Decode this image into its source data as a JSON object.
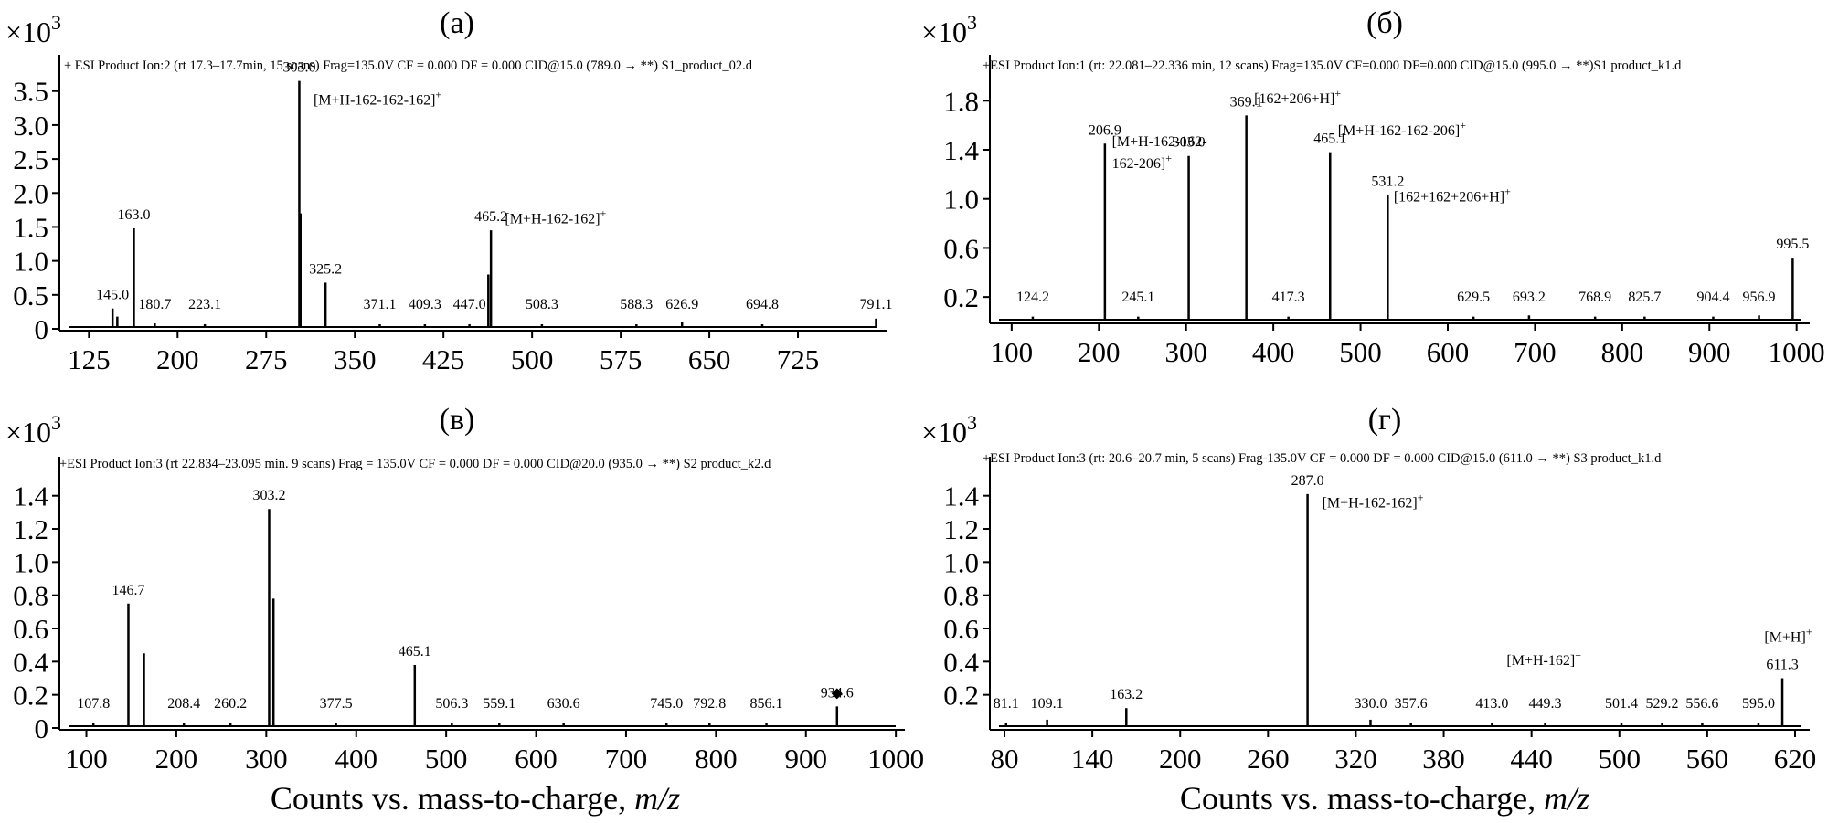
{
  "chart_data": [
    {
      "type": "bar",
      "panel_label": "(а)",
      "multiplier": "×10",
      "multiplier_exp": "3",
      "header": "+ ESI Product Ion:2 (rt 17.3–17.7min, 15 scans) Frag=135.0V CF = 0.000 DF = 0.000 CID@15.0 (789.0 → **) S1_product_02.d",
      "xlim": [
        100,
        800
      ],
      "ylim": [
        0,
        3.9
      ],
      "xticks": [
        125,
        200,
        275,
        350,
        425,
        500,
        575,
        650,
        725
      ],
      "yticks": [
        0,
        0.5,
        1.0,
        1.5,
        2.0,
        2.5,
        3.0,
        3.5
      ],
      "ytick_labels": [
        "0",
        "0.5",
        "1.0",
        "1.5",
        "2.0",
        "2.5",
        "3.0",
        "3.5"
      ],
      "peaks": [
        {
          "x": 145.0,
          "y": 0.3,
          "label": "145.0"
        },
        {
          "x": 149.0,
          "y": 0.18
        },
        {
          "x": 163.0,
          "y": 1.48,
          "label": "163.0"
        },
        {
          "x": 180.7,
          "y": 0.08,
          "label": "180.7"
        },
        {
          "x": 223.1,
          "y": 0.05,
          "label": "223.1"
        },
        {
          "x": 303.0,
          "y": 3.65,
          "label": "303.0"
        },
        {
          "x": 304.0,
          "y": 1.7
        },
        {
          "x": 325.2,
          "y": 0.68,
          "label": "325.2"
        },
        {
          "x": 371.1,
          "y": 0.05,
          "label": "371.1"
        },
        {
          "x": 409.3,
          "y": 0.05,
          "label": "409.3"
        },
        {
          "x": 447.0,
          "y": 0.05,
          "label": "447.0"
        },
        {
          "x": 465.2,
          "y": 1.45,
          "label": "465.2"
        },
        {
          "x": 463.0,
          "y": 0.8
        },
        {
          "x": 508.3,
          "y": 0.05,
          "label": "508.3"
        },
        {
          "x": 588.3,
          "y": 0.05,
          "label": "588.3"
        },
        {
          "x": 626.9,
          "y": 0.1,
          "label": "626.9"
        },
        {
          "x": 694.8,
          "y": 0.05,
          "label": "694.8"
        },
        {
          "x": 791.1,
          "y": 0.15,
          "label": "791.1"
        }
      ],
      "annotations": [
        {
          "text": "[M+H-162-162-162]",
          "sup": "+",
          "x": 315,
          "y": 3.3
        },
        {
          "text": "[M+H-162-162]",
          "sup": "+",
          "x": 477,
          "y": 1.55
        }
      ]
    },
    {
      "type": "bar",
      "panel_label": "(б)",
      "multiplier": "×10",
      "multiplier_exp": "3",
      "header": "+ESI Product Ion:1 (rt: 22.081–22.336 min, 12 scans) Frag=135.0V CF=0.000 DF=0.000 CID@15.0 (995.0 → **)S1 product_k1.d",
      "xlim": [
        75,
        1015
      ],
      "ylim": [
        0,
        2.1
      ],
      "xticks": [
        100,
        200,
        300,
        400,
        500,
        600,
        700,
        800,
        900,
        1000
      ],
      "yticks": [
        0.2,
        0.6,
        1.0,
        1.4,
        1.8
      ],
      "ytick_labels": [
        "0.2",
        "0.6",
        "1.0",
        "1.4",
        "1.8"
      ],
      "peaks": [
        {
          "x": 124.2,
          "y": 0.04,
          "label": "124.2"
        },
        {
          "x": 206.9,
          "y": 1.45,
          "label": "206.9"
        },
        {
          "x": 245.1,
          "y": 0.04,
          "label": "245.1"
        },
        {
          "x": 303.0,
          "y": 1.35,
          "label": "303.0"
        },
        {
          "x": 369.1,
          "y": 1.68,
          "label": "369.1"
        },
        {
          "x": 417.3,
          "y": 0.04,
          "label": "417.3"
        },
        {
          "x": 465.1,
          "y": 1.38,
          "label": "465.1"
        },
        {
          "x": 531.2,
          "y": 1.03,
          "label": "531.2"
        },
        {
          "x": 629.5,
          "y": 0.04,
          "label": "629.5"
        },
        {
          "x": 693.2,
          "y": 0.05,
          "label": "693.2"
        },
        {
          "x": 768.9,
          "y": 0.04,
          "label": "768.9"
        },
        {
          "x": 825.7,
          "y": 0.04,
          "label": "825.7"
        },
        {
          "x": 904.4,
          "y": 0.04,
          "label": "904.4"
        },
        {
          "x": 956.9,
          "y": 0.05,
          "label": "956.9"
        },
        {
          "x": 995.5,
          "y": 0.52,
          "label": "995.5"
        }
      ],
      "annotations": [
        {
          "text": "[M+H-162-162-",
          "x": 215,
          "y": 1.43
        },
        {
          "text": "162-206]",
          "sup": "+",
          "x": 215,
          "y": 1.25
        },
        {
          "text": "[162+206+H]",
          "sup": "+",
          "x": 378,
          "y": 1.78
        },
        {
          "text": "[M+H-162-162-206]",
          "sup": "+",
          "x": 474,
          "y": 1.52
        },
        {
          "text": "[162+162+206+H]",
          "sup": "+",
          "x": 538,
          "y": 0.98
        }
      ]
    },
    {
      "type": "bar",
      "panel_label": "(в)",
      "multiplier": "×10",
      "multiplier_exp": "3",
      "header": "+ESI Product Ion:3 (rt 22.834–23.095 min. 9 scans) Frag = 135.0V CF = 0.000 DF = 0.000 CID@20.0 (935.0 → **) S2 product_k2.d",
      "xlim": [
        70,
        1010
      ],
      "ylim": [
        0,
        1.58
      ],
      "xticks": [
        100,
        200,
        300,
        400,
        500,
        600,
        700,
        800,
        900,
        1000
      ],
      "yticks": [
        0,
        0.2,
        0.4,
        0.6,
        0.8,
        1.0,
        1.2,
        1.4
      ],
      "ytick_labels": [
        "0",
        "0.2",
        "0.4",
        "0.6",
        "0.8",
        "1.0",
        "1.2",
        "1.4"
      ],
      "peaks": [
        {
          "x": 107.8,
          "y": 0.02,
          "label": "107.8"
        },
        {
          "x": 146.7,
          "y": 0.75,
          "label": "146.7"
        },
        {
          "x": 164.0,
          "y": 0.45
        },
        {
          "x": 208.4,
          "y": 0.02,
          "label": "208.4"
        },
        {
          "x": 260.2,
          "y": 0.02,
          "label": "260.2"
        },
        {
          "x": 303.2,
          "y": 1.32,
          "label": "303.2"
        },
        {
          "x": 308.0,
          "y": 0.78
        },
        {
          "x": 377.5,
          "y": 0.02,
          "label": "377.5"
        },
        {
          "x": 465.1,
          "y": 0.38,
          "label": "465.1"
        },
        {
          "x": 506.3,
          "y": 0.02,
          "label": "506.3"
        },
        {
          "x": 559.1,
          "y": 0.02,
          "label": "559.1"
        },
        {
          "x": 630.6,
          "y": 0.02,
          "label": "630.6"
        },
        {
          "x": 745.0,
          "y": 0.02,
          "label": "745.0"
        },
        {
          "x": 792.8,
          "y": 0.02,
          "label": "792.8"
        },
        {
          "x": 856.1,
          "y": 0.02,
          "label": "856.1"
        },
        {
          "x": 934.6,
          "y": 0.13,
          "label": "934.6"
        }
      ],
      "annotations": []
    },
    {
      "type": "bar",
      "panel_label": "(г)",
      "multiplier": "×10",
      "multiplier_exp": "3",
      "header": "+ESI Product Ion:3 (rt: 20.6–20.7 min, 5 scans) Frag-135.0V CF = 0.000 DF = 0.000 CID@15.0 (611.0 → **) S3 product_k1.d",
      "xlim": [
        70,
        630
      ],
      "ylim": [
        0,
        1.58
      ],
      "xticks": [
        80,
        140,
        200,
        260,
        320,
        380,
        440,
        500,
        560,
        620
      ],
      "yticks": [
        0.2,
        0.4,
        0.6,
        0.8,
        1.0,
        1.2,
        1.4
      ],
      "ytick_labels": [
        "0.2",
        "0.4",
        "0.6",
        "0.8",
        "1.0",
        "1.2",
        "1.4"
      ],
      "peaks": [
        {
          "x": 81.1,
          "y": 0.02,
          "label": "81.1"
        },
        {
          "x": 109.1,
          "y": 0.05,
          "label": "109.1"
        },
        {
          "x": 163.2,
          "y": 0.12,
          "label": "163.2"
        },
        {
          "x": 287.0,
          "y": 1.41,
          "label": "287.0"
        },
        {
          "x": 330.0,
          "y": 0.05,
          "label": "330.0"
        },
        {
          "x": 357.6,
          "y": 0.02,
          "label": "357.6"
        },
        {
          "x": 413.0,
          "y": 0.02,
          "label": "413.0"
        },
        {
          "x": 449.3,
          "y": 0.03,
          "label": "449.3"
        },
        {
          "x": 501.4,
          "y": 0.02,
          "label": "501.4"
        },
        {
          "x": 529.2,
          "y": 0.02,
          "label": "529.2"
        },
        {
          "x": 556.6,
          "y": 0.02,
          "label": "556.6"
        },
        {
          "x": 595.0,
          "y": 0.02,
          "label": "595.0"
        },
        {
          "x": 611.3,
          "y": 0.3,
          "label": "611.3"
        }
      ],
      "annotations": [
        {
          "text": "[M+H-162-162]",
          "sup": "+",
          "x": 297,
          "y": 1.33
        },
        {
          "text": "[M+H-162]",
          "sup": "+",
          "x": 423,
          "y": 0.38
        },
        {
          "text": "[M+H]",
          "sup": "+",
          "x": 599,
          "y": 0.52
        }
      ]
    }
  ],
  "xlabel_text": "Counts vs. mass-to-charge, ",
  "xlabel_var": "m/z"
}
